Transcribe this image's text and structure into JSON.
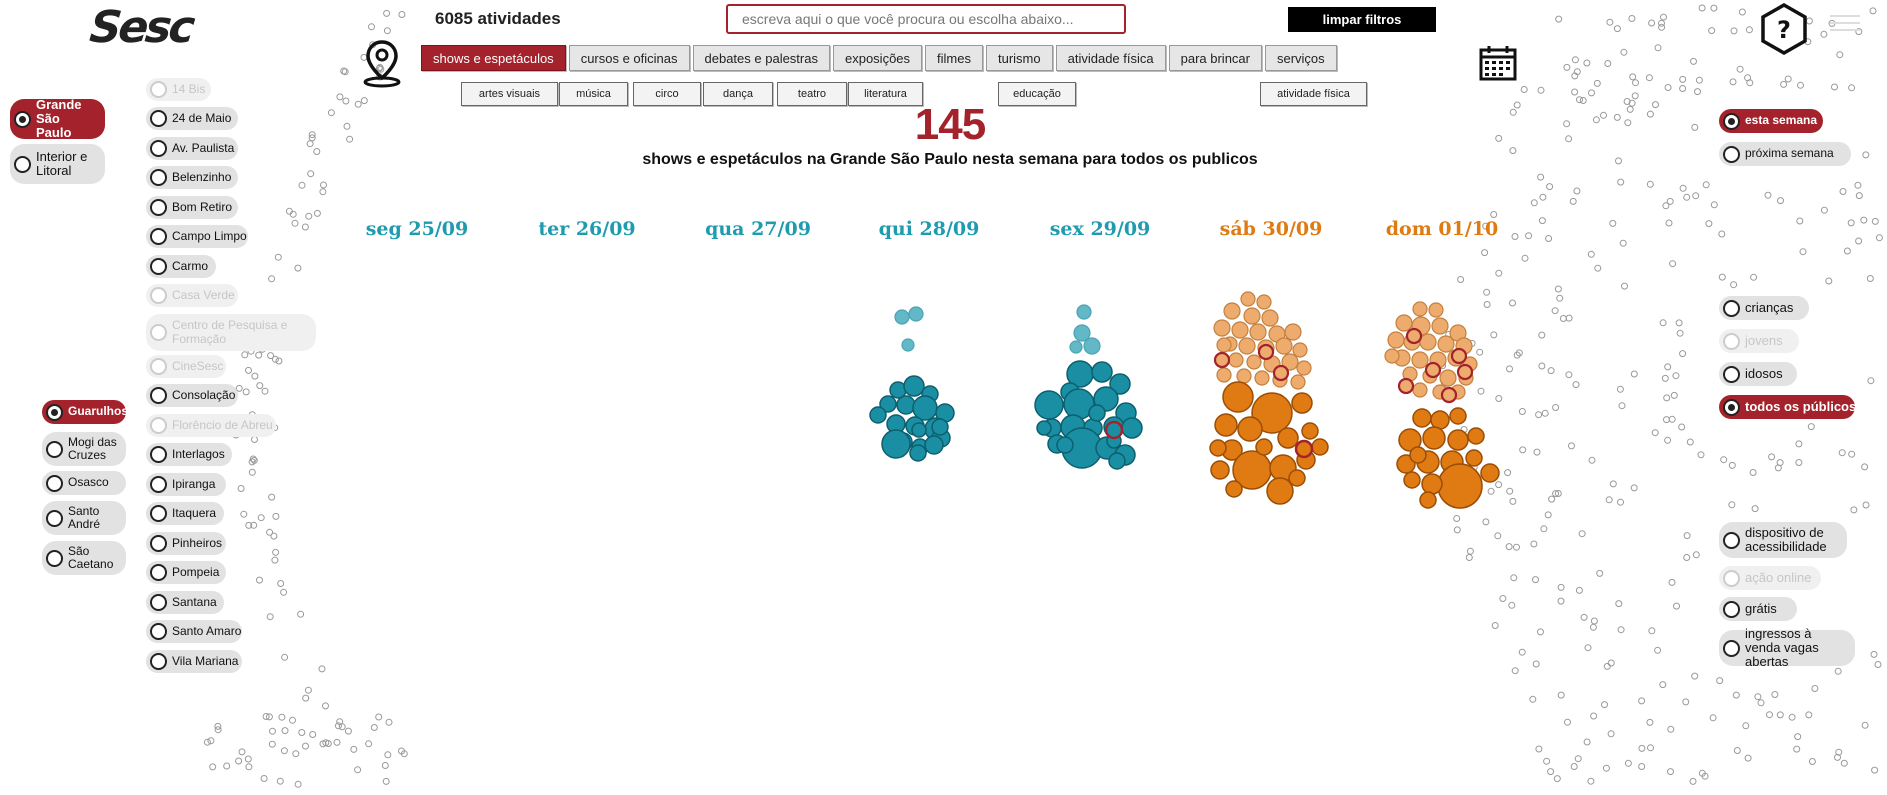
{
  "brand": {
    "logo": "Sesc"
  },
  "header": {
    "total_activities": "6085 atividades",
    "search_placeholder": "escreva aqui o que você procura ou escolha abaixo...",
    "clear_filters": "limpar filtros"
  },
  "categories": [
    {
      "label": "shows e espetáculos",
      "active": true
    },
    {
      "label": "cursos e oficinas",
      "active": false
    },
    {
      "label": "debates e palestras",
      "active": false
    },
    {
      "label": "exposições",
      "active": false
    },
    {
      "label": "filmes",
      "active": false
    },
    {
      "label": "turismo",
      "active": false
    },
    {
      "label": "atividade física",
      "active": false
    },
    {
      "label": "para brincar",
      "active": false
    },
    {
      "label": "serviços",
      "active": false
    }
  ],
  "subcategories": [
    "artes visuais",
    "música",
    "circo",
    "dança",
    "teatro",
    "literatura",
    "educação",
    "atividade física"
  ],
  "summary": {
    "count": "145",
    "headline": "shows e espetáculos na Grande São Paulo nesta semana para todos os publicos"
  },
  "days": [
    {
      "label": "seg 25/09",
      "weekend": false
    },
    {
      "label": "ter 26/09",
      "weekend": false
    },
    {
      "label": "qua 27/09",
      "weekend": false
    },
    {
      "label": "qui 28/09",
      "weekend": false
    },
    {
      "label": "sex 29/09",
      "weekend": false
    },
    {
      "label": "sáb 30/09",
      "weekend": true
    },
    {
      "label": "dom 01/10",
      "weekend": true
    }
  ],
  "regions": [
    {
      "label": "Grande São Paulo",
      "state": "on"
    },
    {
      "label": "Interior e Litoral",
      "state": "default"
    }
  ],
  "cities": [
    {
      "label": "Guarulhos",
      "state": "on"
    },
    {
      "label": "Mogi das Cruzes",
      "state": "default"
    },
    {
      "label": "Osasco",
      "state": "default"
    },
    {
      "label": "Santo André",
      "state": "default"
    },
    {
      "label": "São Caetano",
      "state": "default"
    }
  ],
  "units": [
    {
      "label": "14 Bis",
      "state": "off"
    },
    {
      "label": "24 de Maio",
      "state": "default"
    },
    {
      "label": "Av. Paulista",
      "state": "default"
    },
    {
      "label": "Belenzinho",
      "state": "default"
    },
    {
      "label": "Bom Retiro",
      "state": "default"
    },
    {
      "label": "Campo Limpo",
      "state": "default"
    },
    {
      "label": "Carmo",
      "state": "default"
    },
    {
      "label": "Casa Verde",
      "state": "off"
    },
    {
      "label": "Centro de Pesquisa e Formação",
      "state": "off"
    },
    {
      "label": "CineSesc",
      "state": "off"
    },
    {
      "label": "Consolação",
      "state": "default"
    },
    {
      "label": "Florêncio de Abreu",
      "state": "off"
    },
    {
      "label": "Interlagos",
      "state": "default"
    },
    {
      "label": "Ipiranga",
      "state": "default"
    },
    {
      "label": "Itaquera",
      "state": "default"
    },
    {
      "label": "Pinheiros",
      "state": "default"
    },
    {
      "label": "Pompeia",
      "state": "default"
    },
    {
      "label": "Santana",
      "state": "default"
    },
    {
      "label": "Santo Amaro",
      "state": "default"
    },
    {
      "label": "Vila Mariana",
      "state": "default"
    }
  ],
  "periods": [
    {
      "label": "esta semana",
      "state": "on"
    },
    {
      "label": "próxima semana",
      "state": "default"
    }
  ],
  "audiences": [
    {
      "label": "crianças",
      "state": "default"
    },
    {
      "label": "jovens",
      "state": "off"
    },
    {
      "label": "idosos",
      "state": "default"
    },
    {
      "label": "todos os públicos",
      "state": "on"
    }
  ],
  "extras": [
    {
      "label": "dispositivo de acessibilidade",
      "state": "default"
    },
    {
      "label": "ação online",
      "state": "off"
    },
    {
      "label": "grátis",
      "state": "default"
    },
    {
      "label": "ingressos à venda vagas abertas",
      "state": "default"
    }
  ],
  "colors": {
    "accent": "#a3222c",
    "weekday": "#1f9bb0",
    "weekend": "#e07a12"
  },
  "icons": [
    "map-pin-icon",
    "calendar-icon",
    "help-icon",
    "menu-icon",
    "radio-icon"
  ]
}
